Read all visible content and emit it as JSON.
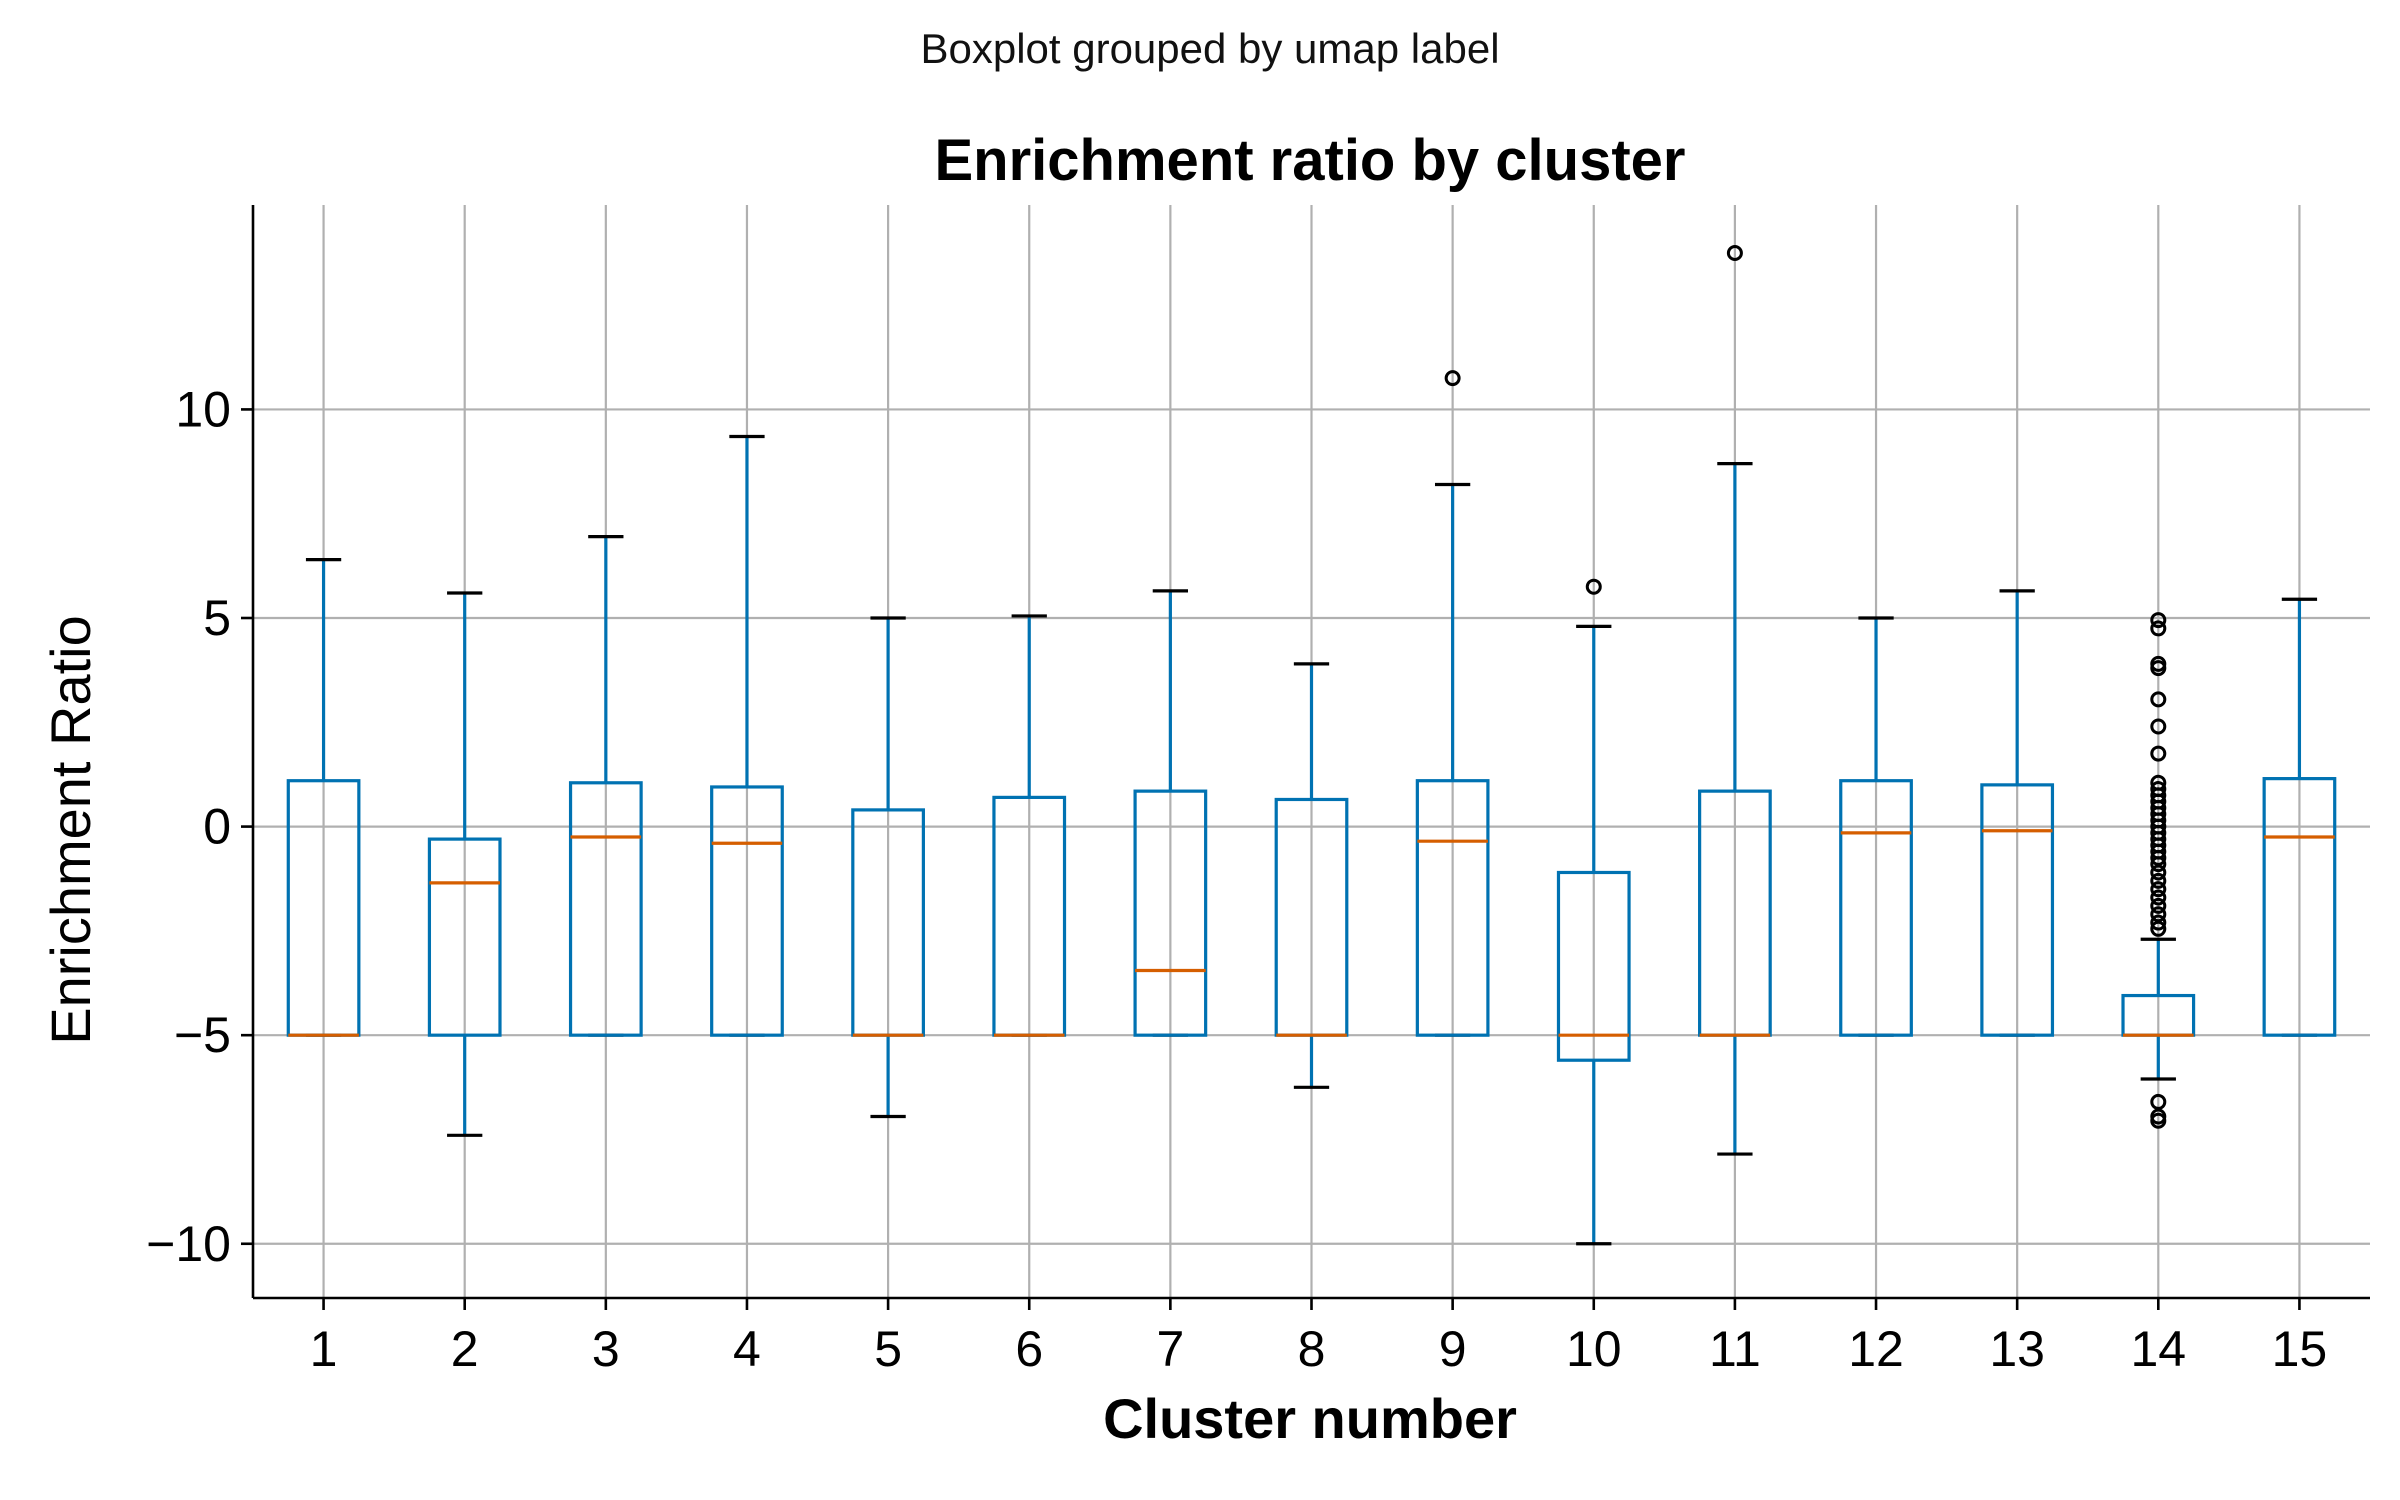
{
  "chart_data": {
    "type": "box",
    "suptitle": "Boxplot grouped by umap label",
    "title": "Enrichment ratio by cluster",
    "xlabel": "Cluster number",
    "ylabel": "Enrichment Ratio",
    "ylim": [
      -11.3,
      14.9
    ],
    "yticks": [
      -10,
      -5,
      0,
      5,
      10
    ],
    "ytick_labels": [
      "−10",
      "−5",
      "0",
      "5",
      "10"
    ],
    "grid": true,
    "colors": {
      "box": "#0072B2",
      "median": "#D55E00",
      "cap": "#000000",
      "flier": "#000000",
      "grid": "#b0b0b0"
    },
    "categories": [
      "1",
      "2",
      "3",
      "4",
      "5",
      "6",
      "7",
      "8",
      "9",
      "10",
      "11",
      "12",
      "13",
      "14",
      "15"
    ],
    "boxes": [
      {
        "label": "1",
        "whislo": -5.0,
        "q1": -5.0,
        "med": -5.0,
        "q3": 1.1,
        "whishi": 6.4,
        "fliers": []
      },
      {
        "label": "2",
        "whislo": -7.4,
        "q1": -5.0,
        "med": -1.35,
        "q3": -0.3,
        "whishi": 5.6,
        "fliers": []
      },
      {
        "label": "3",
        "whislo": -5.0,
        "q1": -5.0,
        "med": -0.25,
        "q3": 1.05,
        "whishi": 6.95,
        "fliers": []
      },
      {
        "label": "4",
        "whislo": -5.0,
        "q1": -5.0,
        "med": -0.4,
        "q3": 0.95,
        "whishi": 9.35,
        "fliers": []
      },
      {
        "label": "5",
        "whislo": -6.95,
        "q1": -5.0,
        "med": -5.0,
        "q3": 0.4,
        "whishi": 5.0,
        "fliers": []
      },
      {
        "label": "6",
        "whislo": -5.0,
        "q1": -5.0,
        "med": -5.0,
        "q3": 0.7,
        "whishi": 5.05,
        "fliers": []
      },
      {
        "label": "7",
        "whislo": -5.0,
        "q1": -5.0,
        "med": -3.45,
        "q3": 0.85,
        "whishi": 5.65,
        "fliers": []
      },
      {
        "label": "8",
        "whislo": -6.25,
        "q1": -5.0,
        "med": -5.0,
        "q3": 0.65,
        "whishi": 3.9,
        "fliers": []
      },
      {
        "label": "9",
        "whislo": -5.0,
        "q1": -5.0,
        "med": -0.35,
        "q3": 1.1,
        "whishi": 8.2,
        "fliers": [
          10.75
        ]
      },
      {
        "label": "10",
        "whislo": -10.0,
        "q1": -5.6,
        "med": -5.0,
        "q3": -1.1,
        "whishi": 4.8,
        "fliers": [
          5.75
        ]
      },
      {
        "label": "11",
        "whislo": -7.85,
        "q1": -5.0,
        "med": -5.0,
        "q3": 0.85,
        "whishi": 8.7,
        "fliers": [
          13.75
        ]
      },
      {
        "label": "12",
        "whislo": -5.0,
        "q1": -5.0,
        "med": -0.15,
        "q3": 1.1,
        "whishi": 5.0,
        "fliers": []
      },
      {
        "label": "13",
        "whislo": -5.0,
        "q1": -5.0,
        "med": -0.1,
        "q3": 1.0,
        "whishi": 5.65,
        "fliers": []
      },
      {
        "label": "14",
        "whislo": -6.05,
        "q1": -5.0,
        "med": -5.0,
        "q3": -4.05,
        "whishi": -2.7,
        "fliers": [
          4.95,
          4.75,
          3.9,
          3.8,
          3.05,
          2.4,
          1.75,
          1.05,
          0.9,
          0.75,
          0.6,
          0.45,
          0.3,
          0.15,
          0.0,
          -0.15,
          -0.3,
          -0.45,
          -0.6,
          -0.75,
          -0.9,
          -1.1,
          -1.3,
          -1.5,
          -1.7,
          -1.9,
          -2.1,
          -2.3,
          -2.45,
          -6.6,
          -6.95,
          -7.05
        ]
      },
      {
        "label": "15",
        "whislo": -5.0,
        "q1": -5.0,
        "med": -0.25,
        "q3": 1.15,
        "whishi": 5.45,
        "fliers": []
      }
    ]
  }
}
